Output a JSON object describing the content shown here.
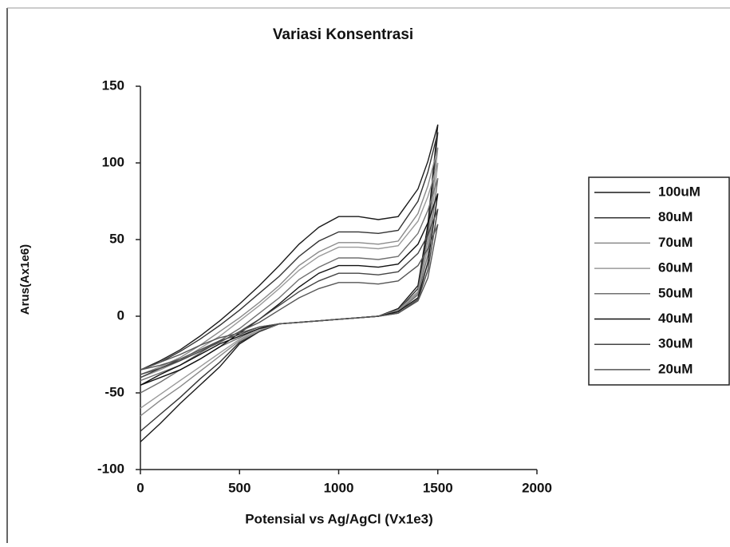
{
  "chart_data": {
    "type": "line",
    "title": "Variasi Konsentrasi",
    "xlabel": "Potensial vs Ag/AgCl (Vx1e3)",
    "ylabel": "Arus(Ax1e6)",
    "x": [
      0,
      100,
      200,
      300,
      400,
      500,
      600,
      700,
      800,
      900,
      1000,
      1100,
      1200,
      1300,
      1400,
      1450,
      1500,
      1450,
      1400,
      1300,
      1200,
      1100,
      1000,
      900,
      800,
      700,
      600,
      500,
      400,
      300,
      200,
      100,
      0
    ],
    "series": [
      {
        "name": "100uM",
        "color": "#1a1a1a",
        "values": [
          -35,
          -29,
          -22,
          -13,
          -3,
          8,
          20,
          33,
          47,
          58,
          65,
          65,
          63,
          65,
          83,
          101,
          125,
          60,
          20,
          5,
          0,
          -1,
          -2,
          -3,
          -4,
          -5,
          -10,
          -18,
          -33,
          -45,
          -57,
          -70,
          -82
        ]
      },
      {
        "name": "80uM",
        "color": "#333333",
        "values": [
          -35,
          -30,
          -23,
          -15,
          -6,
          4,
          15,
          26,
          39,
          49,
          55,
          55,
          54,
          56,
          75,
          94,
          120,
          55,
          18,
          4,
          0,
          -1,
          -2,
          -3,
          -4,
          -5,
          -10,
          -17,
          -30,
          -41,
          -53,
          -64,
          -75
        ]
      },
      {
        "name": "70uM",
        "color": "#8a8a8a",
        "values": [
          -38,
          -33,
          -27,
          -19,
          -10,
          -1,
          9,
          20,
          33,
          42,
          48,
          48,
          47,
          49,
          67,
          85,
          110,
          50,
          16,
          4,
          0,
          -1,
          -2,
          -3,
          -4,
          -5,
          -9,
          -16,
          -26,
          -36,
          -46,
          -55,
          -65
        ]
      },
      {
        "name": "60uM",
        "color": "#9a9a9a",
        "values": [
          -40,
          -35,
          -29,
          -21,
          -13,
          -3,
          7,
          18,
          30,
          39,
          45,
          45,
          44,
          46,
          62,
          78,
          100,
          45,
          15,
          3,
          0,
          -1,
          -2,
          -3,
          -4,
          -5,
          -9,
          -15,
          -24,
          -33,
          -42,
          -51,
          -60
        ]
      },
      {
        "name": "50uM",
        "color": "#707070",
        "values": [
          -42,
          -37,
          -32,
          -24,
          -16,
          -8,
          2,
          12,
          24,
          32,
          38,
          38,
          37,
          39,
          54,
          69,
          90,
          40,
          14,
          3,
          0,
          -1,
          -2,
          -3,
          -4,
          -5,
          -8,
          -14,
          -20,
          -28,
          -35,
          -43,
          -50
        ]
      },
      {
        "name": "40uM",
        "color": "#111111",
        "values": [
          -45,
          -40,
          -35,
          -28,
          -20,
          -11,
          -2,
          8,
          19,
          28,
          33,
          33,
          32,
          34,
          47,
          61,
          80,
          35,
          12,
          3,
          0,
          -1,
          -2,
          -3,
          -4,
          -5,
          -8,
          -13,
          -18,
          -25,
          -32,
          -38,
          -45
        ]
      },
      {
        "name": "30uM",
        "color": "#444444",
        "values": [
          -38,
          -34,
          -29,
          -23,
          -17,
          -10,
          -2,
          7,
          16,
          23,
          28,
          28,
          27,
          29,
          41,
          53,
          70,
          30,
          11,
          2,
          0,
          -1,
          -2,
          -3,
          -4,
          -5,
          -7,
          -12,
          -16,
          -22,
          -28,
          -34,
          -40
        ]
      },
      {
        "name": "20uM",
        "color": "#555555",
        "values": [
          -35,
          -32,
          -28,
          -22,
          -17,
          -10,
          -4,
          4,
          12,
          18,
          22,
          22,
          21,
          23,
          33,
          44,
          60,
          25,
          10,
          2,
          0,
          -1,
          -2,
          -3,
          -4,
          -5,
          -7,
          -11,
          -14,
          -19,
          -25,
          -30,
          -35
        ]
      }
    ],
    "xlim": [
      0,
      2000
    ],
    "xticks": [
      0,
      500,
      1000,
      1500,
      2000
    ],
    "ylim": [
      -100,
      150
    ],
    "yticks": [
      -100,
      -50,
      0,
      50,
      100,
      150
    ]
  }
}
